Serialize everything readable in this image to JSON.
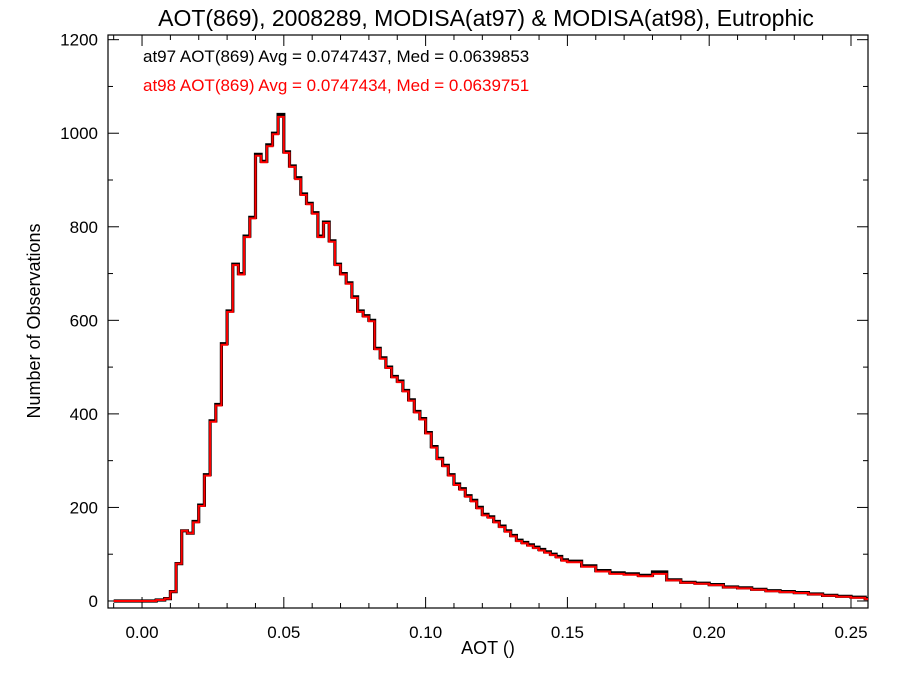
{
  "chart_data": {
    "type": "line",
    "step": true,
    "title": "AOT(869), 2008289, MODISA(at97) & MODISA(at98), Eutrophic",
    "xlabel": "AOT ()",
    "ylabel": "Number of Observations",
    "xlim": [
      -0.012,
      0.256
    ],
    "ylim": [
      -15,
      1210
    ],
    "xticks": [
      0.0,
      0.05,
      0.1,
      0.15,
      0.2,
      0.25
    ],
    "xtick_labels": [
      "0.00",
      "0.05",
      "0.10",
      "0.15",
      "0.20",
      "0.25"
    ],
    "yticks": [
      0,
      200,
      400,
      600,
      800,
      1000,
      1200
    ],
    "ytick_labels": [
      "0",
      "200",
      "400",
      "600",
      "800",
      "1000",
      "1200"
    ],
    "grid": false,
    "annotations": [
      {
        "text": "at97 AOT(869) Avg = 0.0747437, Med = 0.0639853",
        "color": "#000000"
      },
      {
        "text": "at98 AOT(869) Avg = 0.0747434, Med = 0.0639751",
        "color": "#ff0000"
      }
    ],
    "x": [
      -0.01,
      0.0,
      0.005,
      0.008,
      0.01,
      0.012,
      0.014,
      0.016,
      0.018,
      0.02,
      0.022,
      0.024,
      0.026,
      0.028,
      0.03,
      0.032,
      0.034,
      0.036,
      0.038,
      0.04,
      0.042,
      0.044,
      0.046,
      0.048,
      0.05,
      0.052,
      0.054,
      0.056,
      0.058,
      0.06,
      0.062,
      0.064,
      0.066,
      0.068,
      0.07,
      0.072,
      0.074,
      0.076,
      0.078,
      0.08,
      0.082,
      0.084,
      0.086,
      0.088,
      0.09,
      0.092,
      0.094,
      0.096,
      0.098,
      0.1,
      0.102,
      0.104,
      0.106,
      0.108,
      0.11,
      0.112,
      0.114,
      0.116,
      0.118,
      0.12,
      0.122,
      0.124,
      0.126,
      0.128,
      0.13,
      0.132,
      0.134,
      0.136,
      0.138,
      0.14,
      0.142,
      0.144,
      0.146,
      0.148,
      0.15,
      0.155,
      0.16,
      0.165,
      0.17,
      0.175,
      0.18,
      0.185,
      0.19,
      0.195,
      0.2,
      0.205,
      0.21,
      0.215,
      0.22,
      0.225,
      0.23,
      0.235,
      0.24,
      0.245,
      0.25,
      0.255
    ],
    "series": [
      {
        "name": "at97",
        "color": "#000000",
        "values": [
          0,
          0,
          2,
          5,
          20,
          80,
          150,
          145,
          170,
          205,
          270,
          385,
          420,
          550,
          620,
          720,
          700,
          780,
          820,
          955,
          940,
          975,
          1000,
          1040,
          960,
          930,
          905,
          870,
          850,
          830,
          780,
          810,
          770,
          720,
          700,
          680,
          650,
          620,
          610,
          600,
          540,
          520,
          500,
          480,
          470,
          450,
          430,
          405,
          390,
          360,
          330,
          305,
          290,
          270,
          250,
          240,
          225,
          215,
          200,
          185,
          180,
          170,
          160,
          150,
          140,
          130,
          125,
          120,
          115,
          110,
          105,
          100,
          95,
          88,
          85,
          75,
          65,
          60,
          58,
          55,
          62,
          45,
          40,
          38,
          35,
          30,
          28,
          25,
          22,
          20,
          18,
          15,
          12,
          10,
          8,
          5
        ]
      },
      {
        "name": "at98",
        "color": "#ff0000",
        "values": [
          0,
          0,
          2,
          5,
          20,
          80,
          150,
          145,
          168,
          203,
          268,
          383,
          418,
          548,
          618,
          718,
          698,
          778,
          818,
          952,
          938,
          972,
          998,
          1035,
          958,
          928,
          902,
          868,
          848,
          828,
          778,
          808,
          768,
          718,
          698,
          678,
          648,
          618,
          608,
          598,
          538,
          518,
          498,
          478,
          468,
          448,
          428,
          403,
          388,
          358,
          328,
          303,
          288,
          268,
          248,
          238,
          223,
          213,
          198,
          183,
          178,
          168,
          158,
          148,
          138,
          128,
          123,
          118,
          113,
          108,
          103,
          98,
          93,
          86,
          83,
          73,
          63,
          58,
          56,
          53,
          58,
          44,
          39,
          37,
          34,
          29,
          27,
          24,
          21,
          19,
          17,
          14,
          11,
          9,
          7,
          4
        ]
      }
    ]
  }
}
